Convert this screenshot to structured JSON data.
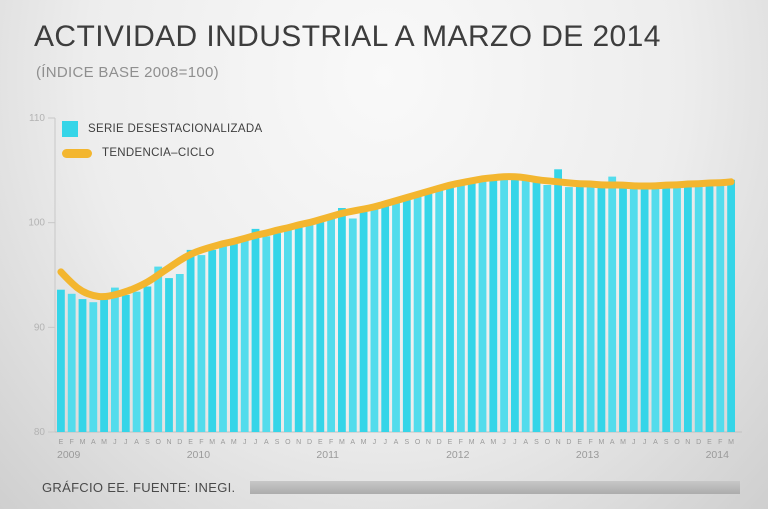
{
  "title": "ACTIVIDAD INDUSTRIAL A MARZO DE 2014",
  "subtitle": "(ÍNDICE BASE 2008=100)",
  "footer": {
    "text": "GRÁFCIO EE. FUENTE: INEGI."
  },
  "legend": [
    {
      "label": "SERIE DESESTACIONALIZADA",
      "color": "#35D5E8"
    },
    {
      "label": "TENDENCIA–CICLO",
      "color": "#F3B62F"
    }
  ],
  "chart_data": {
    "type": "bar",
    "title": "ACTIVIDAD INDUSTRIAL A MARZO DE 2014",
    "xlabel": "",
    "ylabel": "",
    "ylim": [
      80,
      110
    ],
    "yticks": [
      80,
      90,
      100,
      110
    ],
    "grid": false,
    "legend_position": "top-left",
    "month_letters": [
      "E",
      "F",
      "M",
      "A",
      "M",
      "J",
      "J",
      "A",
      "S",
      "O",
      "N",
      "D"
    ],
    "years": [
      {
        "label": "2009",
        "count": 12
      },
      {
        "label": "2010",
        "count": 12
      },
      {
        "label": "2011",
        "count": 12
      },
      {
        "label": "2012",
        "count": 12
      },
      {
        "label": "2013",
        "count": 12
      },
      {
        "label": "2014",
        "count": 3
      }
    ],
    "series": [
      {
        "name": "SERIE DESESTACIONALIZADA",
        "type": "bar",
        "color": "#35D5E8",
        "color_alt": "#53DCEC",
        "values": [
          93.6,
          93.2,
          92.7,
          92.4,
          92.7,
          93.8,
          93.1,
          93.4,
          93.9,
          95.8,
          94.7,
          95.1,
          97.4,
          96.9,
          97.4,
          97.8,
          98.1,
          98.4,
          99.4,
          98.7,
          99.0,
          99.4,
          99.8,
          100.1,
          100.3,
          100.6,
          101.4,
          100.4,
          101.1,
          101.4,
          101.6,
          102.1,
          102.4,
          102.6,
          103.1,
          103.3,
          103.6,
          103.9,
          104.1,
          103.9,
          104.4,
          104.6,
          104.5,
          104.2,
          103.9,
          103.6,
          105.1,
          103.4,
          103.6,
          103.9,
          103.4,
          104.4,
          103.6,
          103.5,
          103.4,
          103.6,
          103.5,
          103.9,
          103.6,
          103.8,
          103.7,
          103.9,
          104.1
        ]
      },
      {
        "name": "TENDENCIA–CICLO",
        "type": "line",
        "color": "#F3B62F",
        "values": [
          95.3,
          94.2,
          93.4,
          93.0,
          92.9,
          93.1,
          93.4,
          93.8,
          94.3,
          95.0,
          95.7,
          96.4,
          97.0,
          97.4,
          97.7,
          98.0,
          98.2,
          98.5,
          98.8,
          99.0,
          99.3,
          99.5,
          99.8,
          100.0,
          100.3,
          100.6,
          100.9,
          101.1,
          101.3,
          101.5,
          101.8,
          102.1,
          102.4,
          102.7,
          103.0,
          103.3,
          103.6,
          103.8,
          104.0,
          104.2,
          104.3,
          104.4,
          104.4,
          104.3,
          104.1,
          104.0,
          103.9,
          103.8,
          103.7,
          103.7,
          103.6,
          103.6,
          103.6,
          103.5,
          103.5,
          103.5,
          103.6,
          103.6,
          103.7,
          103.7,
          103.8,
          103.8,
          103.9
        ]
      }
    ]
  }
}
